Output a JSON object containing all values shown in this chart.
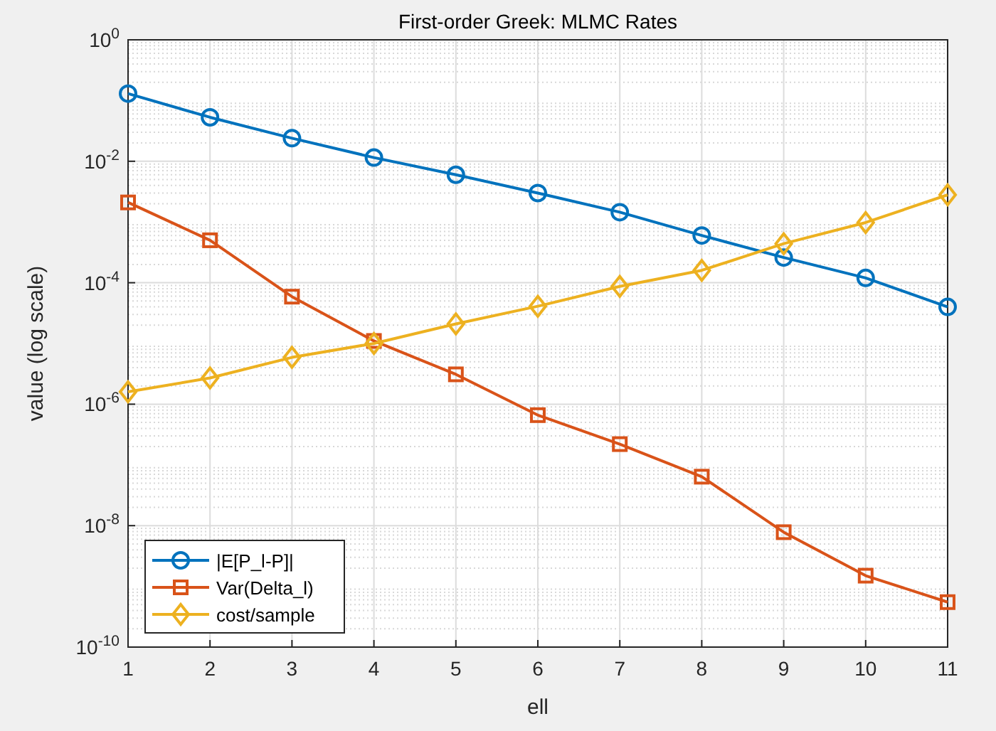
{
  "chart_data": {
    "type": "line",
    "title": "First-order Greek: MLMC Rates",
    "xlabel": "ell",
    "ylabel": "value (log scale)",
    "x": [
      1,
      2,
      3,
      4,
      5,
      6,
      7,
      8,
      9,
      10,
      11
    ],
    "series": [
      {
        "name": "|E[P_l-P]|",
        "color": "#0072bd",
        "marker": "circle",
        "values": [
          0.13,
          0.053,
          0.024,
          0.0115,
          0.006,
          0.003,
          0.00145,
          0.0006,
          0.00026,
          0.00012,
          4e-05
        ]
      },
      {
        "name": "Var(Delta_l)",
        "color": "#d95319",
        "marker": "square",
        "values": [
          0.0021,
          0.0005,
          5.9e-05,
          1.1e-05,
          3.1e-06,
          6.6e-07,
          2.2e-07,
          6.4e-08,
          7.8e-09,
          1.5e-09,
          5.5e-10
        ]
      },
      {
        "name": "cost/sample",
        "color": "#edb120",
        "marker": "diamond",
        "values": [
          1.6e-06,
          2.7e-06,
          5.9e-06,
          1e-05,
          2.1e-05,
          4.1e-05,
          8.7e-05,
          0.00016,
          0.00044,
          0.00098,
          0.0028
        ]
      }
    ],
    "xlim": [
      1,
      11
    ],
    "xticks": [
      1,
      2,
      3,
      4,
      5,
      6,
      7,
      8,
      9,
      10,
      11
    ],
    "ylim": [
      1e-10,
      1
    ],
    "yticks": [
      {
        "value": 1e-10,
        "label": "10$^{-10}$"
      },
      {
        "value": 1e-08,
        "label": "10$^{-8}$"
      },
      {
        "value": 1e-06,
        "label": "10$^{-6}$"
      },
      {
        "value": 0.0001,
        "label": "10$^{-4}$"
      },
      {
        "value": 0.01,
        "label": "10$^{-2}$"
      },
      {
        "value": 1,
        "label": "10$^{0}$"
      }
    ],
    "log": true,
    "grid": true,
    "legend": "bottom left",
    "line_style": "solid"
  }
}
